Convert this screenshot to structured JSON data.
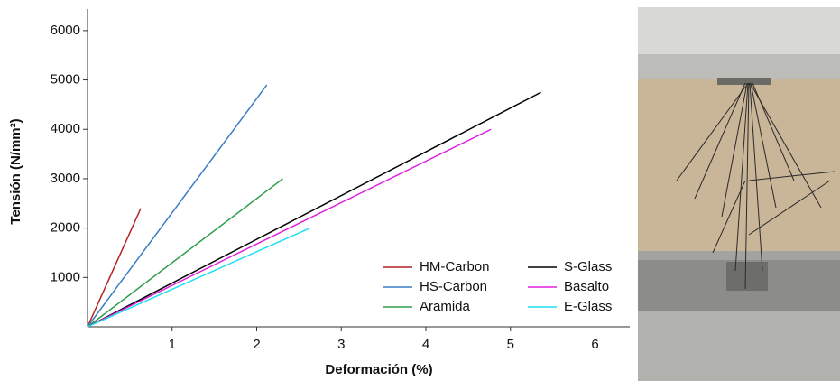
{
  "chart_data": {
    "type": "line",
    "xlabel": "Deformación (%)",
    "ylabel": "Tensión (N/mm²)",
    "xlim": [
      0,
      6.4
    ],
    "xticks": [
      1,
      2,
      3,
      4,
      5,
      6
    ],
    "ylim": [
      0,
      6400
    ],
    "yticks": [
      1000,
      2000,
      3000,
      4000,
      5000,
      6000
    ],
    "legend": "lower right",
    "series": [
      {
        "name": "HM-Carbon",
        "color": "#b22222",
        "x": [
          0,
          0.63
        ],
        "values": [
          0,
          2400
        ]
      },
      {
        "name": "HS-Carbon",
        "color": "#3a7cc4",
        "x": [
          0,
          2.12
        ],
        "values": [
          0,
          4900
        ]
      },
      {
        "name": "Aramida",
        "color": "#2e9e4a",
        "x": [
          0,
          2.31
        ],
        "values": [
          0,
          3000
        ]
      },
      {
        "name": "S-Glass",
        "color": "#000000",
        "x": [
          0,
          5.36
        ],
        "values": [
          0,
          4750
        ]
      },
      {
        "name": "Basalto",
        "color": "#e020e0",
        "x": [
          0,
          4.77
        ],
        "values": [
          0,
          4000
        ]
      },
      {
        "name": "E-Glass",
        "color": "#20e0f0",
        "x": [
          0,
          2.63
        ],
        "values": [
          0,
          2000
        ]
      }
    ]
  }
}
